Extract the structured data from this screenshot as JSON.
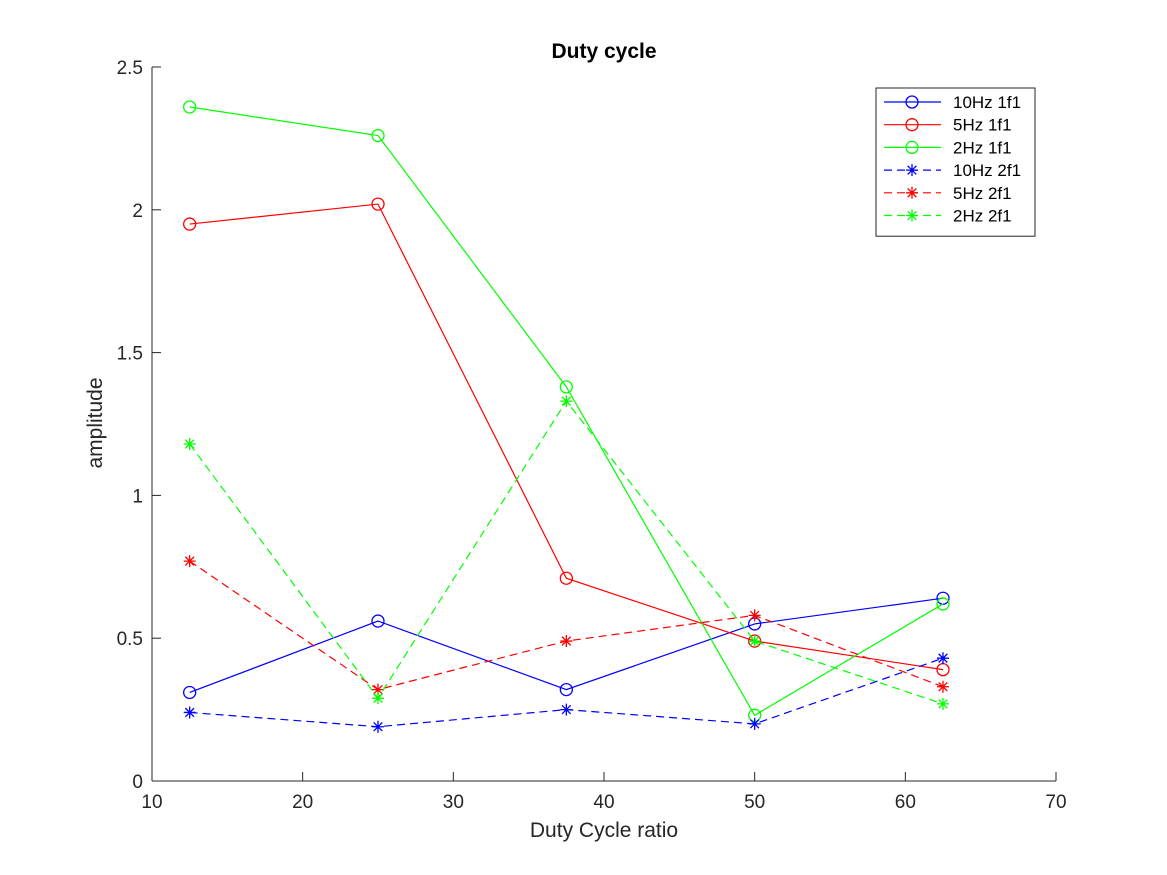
{
  "chart_data": {
    "type": "line",
    "title": "Duty cycle",
    "xlabel": "Duty Cycle ratio",
    "ylabel": "amplitude",
    "xlim": [
      10,
      70
    ],
    "ylim": [
      0,
      2.5
    ],
    "xticks": [
      10,
      20,
      30,
      40,
      50,
      60,
      70
    ],
    "yticks": [
      0,
      0.5,
      1,
      1.5,
      2,
      2.5
    ],
    "ytick_labels": [
      "0",
      "0.5",
      "1",
      "1.5",
      "2",
      "2.5"
    ],
    "grid": false,
    "legend_position": "top-right",
    "x": [
      12.5,
      25,
      37.5,
      50,
      62.5
    ],
    "series": [
      {
        "name": "10Hz 1f1",
        "values": [
          0.31,
          0.56,
          0.32,
          0.55,
          0.64
        ],
        "color": "#0000ff",
        "marker": "circle",
        "linestyle": "solid"
      },
      {
        "name": "5Hz 1f1",
        "values": [
          1.95,
          2.02,
          0.71,
          0.49,
          0.39
        ],
        "color": "#ff0000",
        "marker": "circle",
        "linestyle": "solid"
      },
      {
        "name": "2Hz 1f1",
        "values": [
          2.36,
          2.26,
          1.38,
          0.23,
          0.62
        ],
        "color": "#00ff00",
        "marker": "circle",
        "linestyle": "solid"
      },
      {
        "name": "10Hz 2f1",
        "values": [
          0.24,
          0.19,
          0.25,
          0.2,
          0.43
        ],
        "color": "#0000ff",
        "marker": "star",
        "linestyle": "dashed"
      },
      {
        "name": "5Hz 2f1",
        "values": [
          0.77,
          0.32,
          0.49,
          0.58,
          0.33
        ],
        "color": "#ff0000",
        "marker": "star",
        "linestyle": "dashed"
      },
      {
        "name": "2Hz 2f1",
        "values": [
          1.18,
          0.29,
          1.33,
          0.49,
          0.27
        ],
        "color": "#00ff00",
        "marker": "star",
        "linestyle": "dashed"
      }
    ]
  }
}
